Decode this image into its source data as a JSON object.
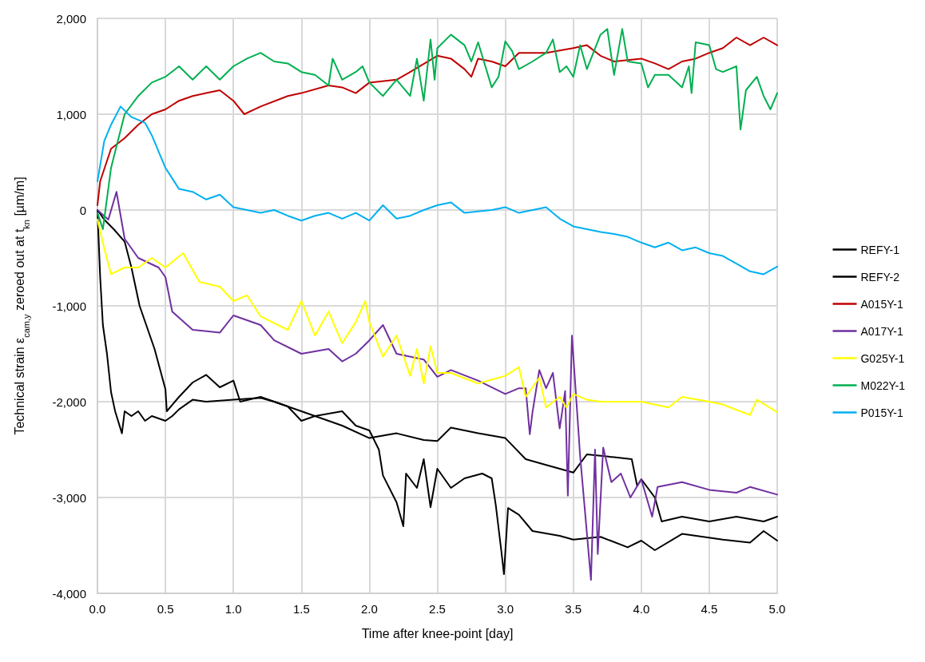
{
  "chart_data": {
    "type": "line",
    "xlabel": "Time after knee-point [day]",
    "ylabel": "Technical strain ε$_{cam,y}$ zeroed out at t$_{kn}$ [µm/m]",
    "xlim": [
      0,
      5
    ],
    "xticks": [
      {
        "value": 0,
        "label": "0.0"
      },
      {
        "value": 0.5,
        "label": "0.5"
      },
      {
        "value": 1,
        "label": "1.0"
      },
      {
        "value": 1.5,
        "label": "1.5"
      },
      {
        "value": 2,
        "label": "2.0"
      },
      {
        "value": 2.5,
        "label": "2.5"
      },
      {
        "value": 3,
        "label": "3.0"
      },
      {
        "value": 3.5,
        "label": "3.5"
      },
      {
        "value": 4,
        "label": "4.0"
      },
      {
        "value": 4.5,
        "label": "4.5"
      },
      {
        "value": 5,
        "label": "5.0"
      }
    ],
    "ylim": [
      -4000,
      2000
    ],
    "yticks": [
      {
        "value": -4000,
        "label": "-4,000"
      },
      {
        "value": -3000,
        "label": "-3,000"
      },
      {
        "value": -2000,
        "label": "-2,000"
      },
      {
        "value": -1000,
        "label": "-1,000"
      },
      {
        "value": 0,
        "label": "0"
      },
      {
        "value": 1000,
        "label": "1,000"
      },
      {
        "value": 2000,
        "label": "2,000"
      }
    ],
    "grid": true,
    "legend": "right",
    "marker": "none",
    "line_style": "solid",
    "series": [
      {
        "name": "REFY-1",
        "color": "#000000",
        "x": [
          0,
          0.02,
          0.04,
          0.07,
          0.1,
          0.13,
          0.18,
          0.2,
          0.25,
          0.3,
          0.35,
          0.4,
          0.5,
          0.55,
          0.6,
          0.7,
          0.8,
          1.0,
          1.2,
          1.3,
          1.5,
          1.6,
          1.8,
          2.0,
          2.2,
          2.4,
          2.5,
          2.6,
          2.8,
          3.0,
          3.15,
          3.3,
          3.5,
          3.6,
          3.8,
          3.93,
          3.97,
          4.0,
          4.1,
          4.15,
          4.3,
          4.5,
          4.7,
          4.9,
          5.0
        ],
        "values": [
          0,
          -700,
          -1200,
          -1500,
          -1900,
          -2100,
          -2330,
          -2100,
          -2150,
          -2100,
          -2200,
          -2150,
          -2200,
          -2150,
          -2080,
          -1980,
          -2000,
          -1980,
          -1960,
          -2000,
          -2100,
          -2150,
          -2250,
          -2380,
          -2330,
          -2400,
          -2410,
          -2270,
          -2330,
          -2380,
          -2600,
          -2660,
          -2740,
          -2550,
          -2580,
          -2600,
          -2880,
          -2810,
          -3000,
          -3250,
          -3200,
          -3250,
          -3200,
          -3250,
          -3200
        ]
      },
      {
        "name": "REFY-2",
        "color": "#000000",
        "x": [
          0,
          0.05,
          0.12,
          0.2,
          0.25,
          0.31,
          0.42,
          0.5,
          0.51,
          0.6,
          0.7,
          0.8,
          0.9,
          1.0,
          1.05,
          1.2,
          1.4,
          1.5,
          1.6,
          1.8,
          1.9,
          2.0,
          2.07,
          2.1,
          2.2,
          2.25,
          2.27,
          2.35,
          2.4,
          2.45,
          2.5,
          2.6,
          2.7,
          2.83,
          2.9,
          2.93,
          2.97,
          2.99,
          3.02,
          3.1,
          3.2,
          3.4,
          3.5,
          3.7,
          3.9,
          4.0,
          4.1,
          4.3,
          4.6,
          4.8,
          4.9,
          5.0
        ],
        "values": [
          0,
          -100,
          -200,
          -330,
          -600,
          -1000,
          -1450,
          -1870,
          -2100,
          -1950,
          -1800,
          -1720,
          -1850,
          -1780,
          -2000,
          -1950,
          -2050,
          -2200,
          -2150,
          -2100,
          -2250,
          -2300,
          -2500,
          -2770,
          -3050,
          -3300,
          -2750,
          -2900,
          -2600,
          -3100,
          -2700,
          -2900,
          -2800,
          -2750,
          -2800,
          -3080,
          -3550,
          -3800,
          -3110,
          -3180,
          -3350,
          -3400,
          -3440,
          -3410,
          -3520,
          -3450,
          -3550,
          -3380,
          -3440,
          -3470,
          -3350,
          -3450
        ]
      },
      {
        "name": "A015Y-1",
        "color": "#c00000",
        "x": [
          0,
          0.02,
          0.1,
          0.2,
          0.3,
          0.4,
          0.5,
          0.6,
          0.7,
          0.8,
          0.9,
          1.0,
          1.08,
          1.2,
          1.4,
          1.5,
          1.7,
          1.8,
          1.9,
          2.0,
          2.2,
          2.3,
          2.5,
          2.6,
          2.7,
          2.75,
          2.8,
          2.9,
          3.0,
          3.1,
          3.3,
          3.5,
          3.6,
          3.7,
          3.8,
          4.0,
          4.1,
          4.2,
          4.3,
          4.4,
          4.5,
          4.6,
          4.7,
          4.8,
          4.9,
          5.0
        ],
        "values": [
          50,
          300,
          640,
          750,
          890,
          1000,
          1050,
          1140,
          1190,
          1220,
          1250,
          1140,
          1000,
          1080,
          1190,
          1220,
          1300,
          1280,
          1220,
          1330,
          1360,
          1440,
          1610,
          1580,
          1470,
          1390,
          1580,
          1550,
          1500,
          1640,
          1640,
          1690,
          1720,
          1610,
          1550,
          1580,
          1530,
          1470,
          1550,
          1580,
          1640,
          1690,
          1800,
          1720,
          1800,
          1720
        ]
      },
      {
        "name": "A017Y-1",
        "color": "#7030a0",
        "x": [
          0,
          0.08,
          0.14,
          0.2,
          0.3,
          0.45,
          0.5,
          0.55,
          0.7,
          0.9,
          1.0,
          1.2,
          1.3,
          1.5,
          1.7,
          1.8,
          1.9,
          2.0,
          2.1,
          2.2,
          2.4,
          2.5,
          2.6,
          2.8,
          3.0,
          3.1,
          3.15,
          3.18,
          3.2,
          3.25,
          3.3,
          3.35,
          3.4,
          3.44,
          3.46,
          3.49,
          3.55,
          3.63,
          3.66,
          3.68,
          3.72,
          3.78,
          3.85,
          3.92,
          4.0,
          4.08,
          4.12,
          4.3,
          4.5,
          4.7,
          4.8,
          5.0
        ],
        "values": [
          0,
          -100,
          190,
          -300,
          -500,
          -600,
          -700,
          -1060,
          -1250,
          -1280,
          -1100,
          -1200,
          -1360,
          -1500,
          -1450,
          -1580,
          -1500,
          -1360,
          -1200,
          -1500,
          -1560,
          -1740,
          -1670,
          -1780,
          -1920,
          -1860,
          -1860,
          -2340,
          -2110,
          -1670,
          -1860,
          -1700,
          -2280,
          -1890,
          -2980,
          -1310,
          -2560,
          -3860,
          -2500,
          -3590,
          -2480,
          -2840,
          -2750,
          -3000,
          -2810,
          -3200,
          -2890,
          -2840,
          -2920,
          -2950,
          -2890,
          -2970
        ]
      },
      {
        "name": "G025Y-1",
        "color": "#ffff00",
        "x": [
          0,
          0.05,
          0.1,
          0.2,
          0.3,
          0.4,
          0.5,
          0.63,
          0.75,
          0.9,
          1.0,
          1.1,
          1.2,
          1.4,
          1.5,
          1.6,
          1.7,
          1.8,
          1.9,
          1.97,
          2.0,
          2.1,
          2.2,
          2.3,
          2.35,
          2.4,
          2.45,
          2.5,
          2.6,
          2.8,
          3.0,
          3.1,
          3.15,
          3.25,
          3.3,
          3.4,
          3.45,
          3.5,
          3.6,
          3.7,
          4.0,
          4.2,
          4.3,
          4.5,
          4.6,
          4.8,
          4.85,
          5.0
        ],
        "values": [
          -100,
          -400,
          -670,
          -600,
          -600,
          -500,
          -600,
          -450,
          -750,
          -800,
          -950,
          -890,
          -1110,
          -1250,
          -950,
          -1310,
          -1060,
          -1390,
          -1170,
          -950,
          -1170,
          -1530,
          -1310,
          -1730,
          -1450,
          -1810,
          -1420,
          -1700,
          -1700,
          -1810,
          -1730,
          -1640,
          -1950,
          -1750,
          -2060,
          -1950,
          -2060,
          -1920,
          -1980,
          -2000,
          -2000,
          -2060,
          -1950,
          -2000,
          -2030,
          -2140,
          -1980,
          -2110
        ]
      },
      {
        "name": "M022Y-1",
        "color": "#00b050",
        "x": [
          0,
          0.04,
          0.1,
          0.2,
          0.3,
          0.4,
          0.5,
          0.6,
          0.7,
          0.8,
          0.9,
          1.0,
          1.1,
          1.2,
          1.3,
          1.4,
          1.5,
          1.6,
          1.7,
          1.73,
          1.8,
          1.9,
          1.95,
          2.0,
          2.1,
          2.2,
          2.3,
          2.35,
          2.4,
          2.45,
          2.48,
          2.5,
          2.6,
          2.7,
          2.75,
          2.8,
          2.9,
          2.95,
          3.0,
          3.05,
          3.1,
          3.2,
          3.3,
          3.35,
          3.4,
          3.45,
          3.5,
          3.55,
          3.6,
          3.7,
          3.75,
          3.8,
          3.86,
          3.9,
          4.0,
          4.05,
          4.1,
          4.2,
          4.3,
          4.35,
          4.37,
          4.4,
          4.5,
          4.55,
          4.6,
          4.7,
          4.73,
          4.77,
          4.85,
          4.9,
          4.95,
          5.0
        ],
        "values": [
          -30,
          -200,
          440,
          1000,
          1190,
          1330,
          1390,
          1500,
          1360,
          1500,
          1360,
          1500,
          1580,
          1640,
          1550,
          1530,
          1440,
          1410,
          1300,
          1580,
          1360,
          1440,
          1500,
          1330,
          1190,
          1360,
          1190,
          1580,
          1140,
          1780,
          1360,
          1690,
          1830,
          1720,
          1550,
          1750,
          1280,
          1390,
          1760,
          1660,
          1470,
          1550,
          1640,
          1780,
          1440,
          1500,
          1390,
          1720,
          1470,
          1830,
          1890,
          1410,
          1890,
          1550,
          1530,
          1280,
          1410,
          1410,
          1280,
          1500,
          1220,
          1750,
          1720,
          1470,
          1440,
          1500,
          840,
          1250,
          1390,
          1190,
          1050,
          1220
        ]
      },
      {
        "name": "P015Y-1",
        "color": "#00b0f0",
        "x": [
          0,
          0.05,
          0.1,
          0.17,
          0.25,
          0.3,
          0.35,
          0.4,
          0.45,
          0.5,
          0.55,
          0.6,
          0.7,
          0.8,
          0.9,
          1.0,
          1.1,
          1.2,
          1.3,
          1.4,
          1.5,
          1.6,
          1.7,
          1.8,
          1.9,
          2.0,
          2.1,
          2.2,
          2.3,
          2.4,
          2.5,
          2.6,
          2.7,
          2.9,
          3.0,
          3.1,
          3.2,
          3.3,
          3.4,
          3.5,
          3.6,
          3.7,
          3.8,
          3.9,
          4.0,
          4.1,
          4.2,
          4.3,
          4.4,
          4.5,
          4.6,
          4.7,
          4.8,
          4.9,
          5.0
        ],
        "values": [
          300,
          720,
          890,
          1080,
          970,
          940,
          910,
          780,
          610,
          440,
          330,
          220,
          190,
          110,
          160,
          30,
          0,
          -30,
          0,
          -60,
          -110,
          -60,
          -30,
          -90,
          -30,
          -110,
          50,
          -90,
          -60,
          0,
          50,
          80,
          -30,
          0,
          30,
          -30,
          0,
          30,
          -90,
          -170,
          -200,
          -230,
          -250,
          -280,
          -340,
          -390,
          -340,
          -420,
          -390,
          -450,
          -480,
          -560,
          -640,
          -670,
          -590
        ]
      }
    ]
  }
}
